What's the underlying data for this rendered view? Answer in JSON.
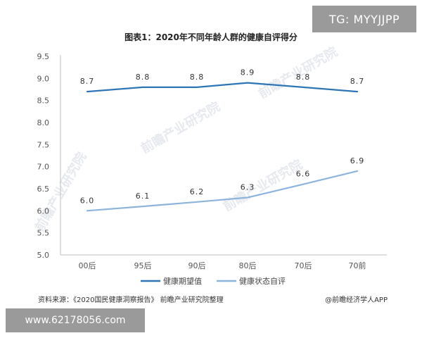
{
  "chart_data": {
    "type": "line",
    "title": "图表1：2020年不同年龄人群的健康自评得分",
    "categories": [
      "00后",
      "95后",
      "90后",
      "80后",
      "70后",
      "70前"
    ],
    "series": [
      {
        "name": "健康期望值",
        "values": [
          8.7,
          8.8,
          8.8,
          8.9,
          8.8,
          8.7
        ],
        "color": "#2e75b6"
      },
      {
        "name": "健康状态自评",
        "values": [
          6.0,
          6.1,
          6.2,
          6.3,
          6.6,
          6.9
        ],
        "color": "#8db4dc"
      }
    ],
    "value_labels": [
      [
        "8.7",
        "8.8",
        "8.8",
        "8.9",
        "8.8",
        "8.7"
      ],
      [
        "6.0",
        "6.1",
        "6.2",
        "6.3",
        "6.6",
        "6.9"
      ]
    ],
    "ylim": [
      5.0,
      9.5
    ],
    "yticks": [
      5.0,
      5.5,
      6.0,
      6.5,
      7.0,
      7.5,
      8.0,
      8.5,
      9.0,
      9.5
    ],
    "ytick_labels": [
      "5.0",
      "5.5",
      "6.0",
      "6.5",
      "7.0",
      "7.5",
      "8.0",
      "8.5",
      "9.0",
      "9.5"
    ],
    "grid": false,
    "legend_position": "bottom-center",
    "xlabel": "",
    "ylabel": ""
  },
  "source_text": "资料来源：《2020国民健康洞察报告》 前瞻产业研究院整理",
  "credit_text": "@前瞻经济学人APP",
  "watermark_text": "前瞻产业研究院",
  "overlay": {
    "tg_label": "TG: MYYJJPP",
    "url_label": "www.62178056.com"
  },
  "colors": {
    "axis": "#bfbfbf",
    "watermark": "#e6e9ee",
    "overlay_bg": "#9a9a9a"
  }
}
